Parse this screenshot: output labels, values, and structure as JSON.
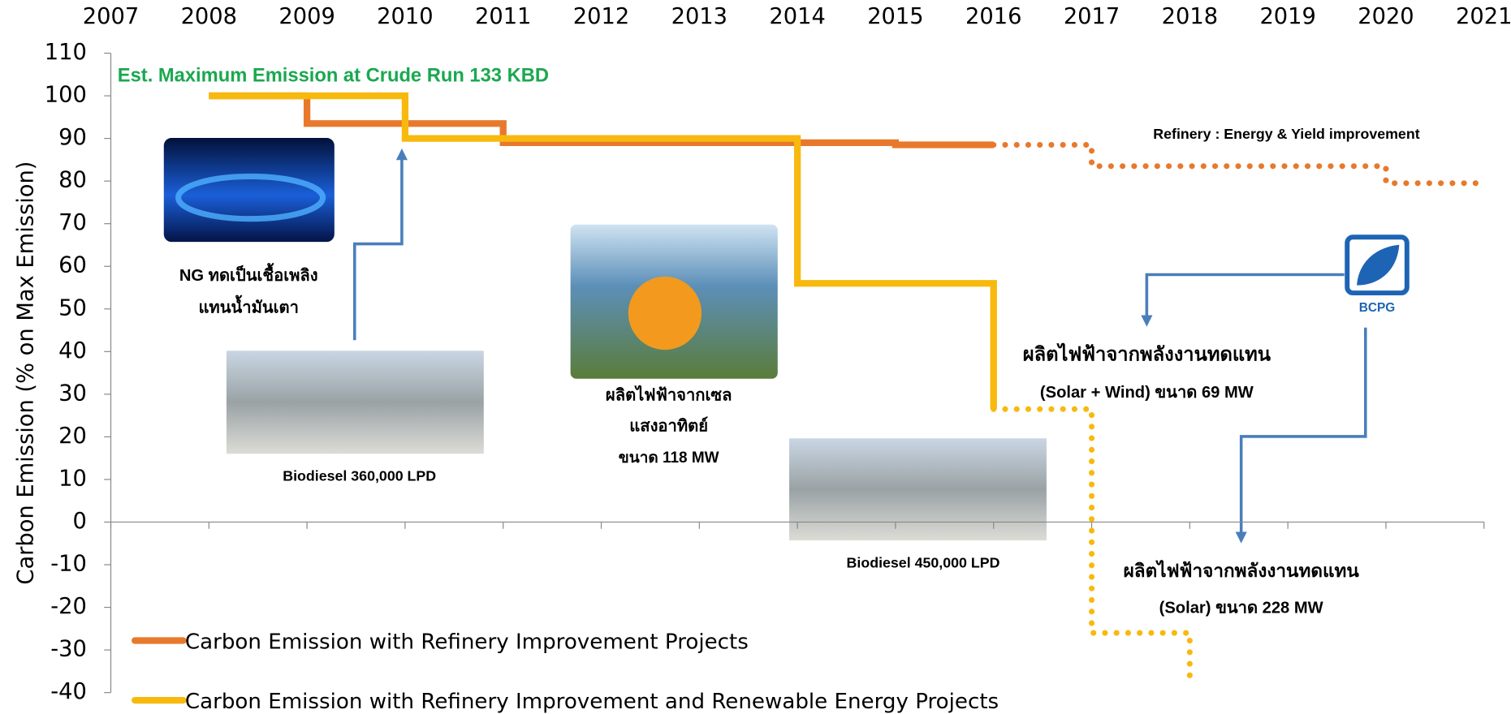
{
  "chart_data": {
    "type": "step-line",
    "y_label": "Carbon Emission (% on Max Emission)",
    "xlim": [
      2007,
      2021
    ],
    "xticks": [
      2007,
      2008,
      2009,
      2010,
      2011,
      2012,
      2013,
      2014,
      2015,
      2016,
      2017,
      2018,
      2019,
      2020,
      2021
    ],
    "ylim": [
      -40,
      110
    ],
    "yticks": [
      -40,
      -30,
      -20,
      -10,
      0,
      10,
      20,
      30,
      40,
      50,
      60,
      70,
      80,
      90,
      100,
      110
    ],
    "grid": false,
    "legend_position": "lower left",
    "series": [
      {
        "name": "Carbon Emission with Refinery Improvement Projects",
        "color": "#e8792c",
        "x": [
          2008,
          2009,
          2009,
          2011,
          2011,
          2015,
          2015,
          2016,
          2017,
          2017,
          2020,
          2020,
          2021
        ],
        "values": [
          100,
          100,
          93.5,
          93.5,
          89,
          89,
          88.5,
          88.5,
          null,
          null,
          null,
          null,
          null
        ],
        "projected_values": [
          null,
          null,
          null,
          null,
          null,
          null,
          null,
          88.5,
          88.5,
          83.5,
          83.5,
          79.5,
          79.5
        ]
      },
      {
        "name": "Carbon Emission with Refinery Improvement and Renewable Energy Projects",
        "color": "#f8b90f",
        "x": [
          2008,
          2010,
          2010,
          2014,
          2014,
          2016,
          2016,
          2017,
          2017,
          2018,
          2018
        ],
        "values": [
          100,
          100,
          90,
          90,
          56,
          56,
          26.5,
          null,
          null,
          null,
          null
        ],
        "projected_values": [
          null,
          null,
          null,
          null,
          null,
          null,
          26.5,
          26.5,
          -26,
          -26,
          -38
        ]
      }
    ],
    "annotations": [
      "Est. Maximum Emission at Crude Run 133 KBD",
      "Refinery : Energy & Yield improvement",
      "NG ทดเป็นเชื้อเพลิง",
      "แทนน้ำมันเตา",
      "Biodiesel 360,000 LPD",
      "ผลิตไฟฟ้าจากเซล",
      "แสงอาทิตย์",
      "ขนาด 118 MW",
      "ผลิตไฟฟ้าจากพลังงานทดแทน",
      "(Solar + Wind) ขนาด 69 MW",
      "Biodiesel 450,000 LPD",
      "ผลิตไฟฟ้าจากพลังงานทดแทน",
      "(Solar) ขนาด 228 MW",
      "BCPG"
    ]
  }
}
